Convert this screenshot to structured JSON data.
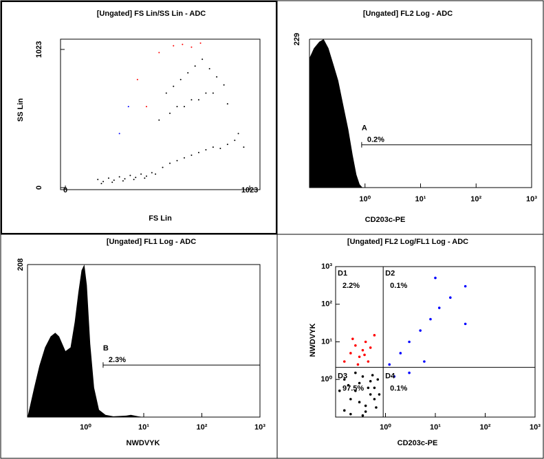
{
  "chart_data": [
    {
      "type": "scatter",
      "title": "[Ungated] FS Lin/SS Lin - ADC",
      "xlabel": "FS Lin",
      "ylabel": "SS Lin",
      "xscale": "linear",
      "yscale": "linear",
      "xlim": [
        -27,
        1080
      ],
      "ylim": [
        -15,
        1099
      ],
      "xticks": [
        0,
        1023
      ],
      "yticks": [
        0,
        1023
      ],
      "series": [
        {
          "color": "#000000",
          "x": [
            180,
            210,
            240,
            270,
            300,
            330,
            360,
            390,
            420,
            450,
            480,
            200,
            260,
            320,
            380,
            440,
            500,
            540,
            580,
            620,
            660,
            700,
            740,
            780,
            820,
            860,
            900,
            940,
            560,
            600,
            640,
            680,
            720,
            760,
            800,
            840,
            880,
            620,
            700,
            780,
            520,
            580,
            660,
            740,
            820,
            900,
            960,
            990
          ],
          "y": [
            60,
            45,
            70,
            55,
            80,
            65,
            90,
            75,
            100,
            85,
            110,
            30,
            40,
            50,
            60,
            70,
            100,
            150,
            180,
            200,
            220,
            240,
            260,
            280,
            300,
            290,
            320,
            350,
            700,
            750,
            800,
            850,
            900,
            950,
            880,
            820,
            760,
            600,
            650,
            700,
            500,
            550,
            600,
            650,
            700,
            620,
            400,
            300
          ]
        },
        {
          "color": "#ff0000",
          "x": [
            600,
            650,
            700,
            750,
            400,
            450,
            520
          ],
          "y": [
            1050,
            1060,
            1040,
            1070,
            800,
            600,
            1000
          ]
        },
        {
          "color": "#0000ff",
          "x": [
            300,
            350
          ],
          "y": [
            400,
            600
          ]
        }
      ]
    },
    {
      "type": "histogram",
      "title": "[Ungated] FL2 Log - ADC",
      "xlabel": "CD203c-PE",
      "xscale": "log",
      "yscale": "linear",
      "xlim": [
        0.1,
        1000
      ],
      "ylim": [
        0,
        229
      ],
      "xticks": [
        {
          "value": 1,
          "label": "10⁰"
        },
        {
          "value": 10,
          "label": "10¹"
        },
        {
          "value": 100,
          "label": "10²"
        },
        {
          "value": 1000,
          "label": "10³"
        }
      ],
      "yticks": [
        229
      ],
      "color": "#000000",
      "x": [
        0.1,
        0.12,
        0.15,
        0.18,
        0.22,
        0.27,
        0.33,
        0.4,
        0.5,
        0.6,
        0.7,
        0.8,
        0.9
      ],
      "values": [
        200,
        215,
        225,
        229,
        215,
        190,
        165,
        130,
        90,
        50,
        20,
        5,
        0
      ],
      "gate": {
        "label": "A",
        "percent": "0.2%",
        "range": [
          0.87,
          1000
        ],
        "level": 66
      }
    },
    {
      "type": "histogram",
      "title": "[Ungated] FL1 Log - ADC",
      "xlabel": "NWDVYK",
      "xscale": "log",
      "yscale": "linear",
      "xlim": [
        0.1,
        1000
      ],
      "ylim": [
        0,
        208
      ],
      "xticks": [
        {
          "value": 1,
          "label": "10⁰"
        },
        {
          "value": 10,
          "label": "10¹"
        },
        {
          "value": 100,
          "label": "10²"
        },
        {
          "value": 1000,
          "label": "10³"
        }
      ],
      "yticks": [
        208
      ],
      "color": "#000000",
      "x": [
        0.1,
        0.13,
        0.16,
        0.2,
        0.25,
        0.3,
        0.35,
        0.45,
        0.55,
        0.65,
        0.75,
        0.85,
        0.95,
        1.05,
        1.2,
        1.4,
        1.7,
        2.2,
        3,
        5,
        6,
        8,
        10
      ],
      "values": [
        0,
        40,
        70,
        95,
        110,
        115,
        110,
        90,
        95,
        130,
        170,
        200,
        208,
        180,
        100,
        40,
        10,
        3,
        1,
        2,
        3,
        1,
        0
      ],
      "gate": {
        "label": "B",
        "percent": "2.3%",
        "range": [
          2,
          1000
        ],
        "level": 71
      }
    },
    {
      "type": "scatter",
      "title": "[Ungated] FL2 Log/FL1 Log - ADC",
      "xlabel": "CD203c-PE",
      "ylabel": "NWDVYK",
      "xscale": "log",
      "yscale": "log",
      "xlim": [
        0.1,
        1000
      ],
      "ylim": [
        0.1,
        1000
      ],
      "xticks": [
        {
          "value": 1,
          "label": "10⁰"
        },
        {
          "value": 10,
          "label": "10¹"
        },
        {
          "value": 100,
          "label": "10²"
        },
        {
          "value": 1000,
          "label": "10³"
        }
      ],
      "yticks": [
        {
          "value": 1,
          "label": "10⁰"
        },
        {
          "value": 10,
          "label": "10¹"
        },
        {
          "value": 100,
          "label": "10²"
        },
        {
          "value": 1000,
          "label": "10³"
        }
      ],
      "series": [
        {
          "color": "#000000",
          "x": [
            0.15,
            0.2,
            0.25,
            0.3,
            0.35,
            0.4,
            0.5,
            0.6,
            0.7,
            0.15,
            0.2,
            0.3,
            0.4,
            0.5,
            0.6,
            0.12,
            0.18,
            0.25,
            0.35,
            0.45,
            0.55,
            0.65,
            0.75
          ],
          "y": [
            0.15,
            0.3,
            0.5,
            0.8,
            1.2,
            0.2,
            0.4,
            0.6,
            1.0,
            1.0,
            0.12,
            0.25,
            0.14,
            0.9,
            0.3,
            0.5,
            0.7,
            1.5,
            0.11,
            0.6,
            1.3,
            0.18,
            0.4
          ]
        },
        {
          "color": "#ff0000",
          "x": [
            0.15,
            0.2,
            0.25,
            0.3,
            0.35,
            0.4,
            0.45,
            0.5,
            0.22,
            0.28,
            0.38,
            0.6
          ],
          "y": [
            3,
            5,
            8,
            4,
            6,
            10,
            3,
            7,
            12,
            2.5,
            4.5,
            15
          ]
        },
        {
          "color": "#0000ff",
          "x": [
            1.2,
            2,
            3,
            5,
            8,
            12,
            20,
            40,
            1.5,
            3,
            6,
            10,
            40
          ],
          "y": [
            2.5,
            5,
            10,
            20,
            40,
            80,
            150,
            300,
            1.2,
            1.5,
            3,
            500,
            30
          ]
        }
      ],
      "quadrant": {
        "x": 0.9,
        "y": 2.1,
        "labels": [
          "D1",
          "D2",
          "D3",
          "D4"
        ],
        "percents": [
          "2.2%",
          "0.1%",
          "97.5%",
          "0.1%"
        ]
      }
    }
  ]
}
